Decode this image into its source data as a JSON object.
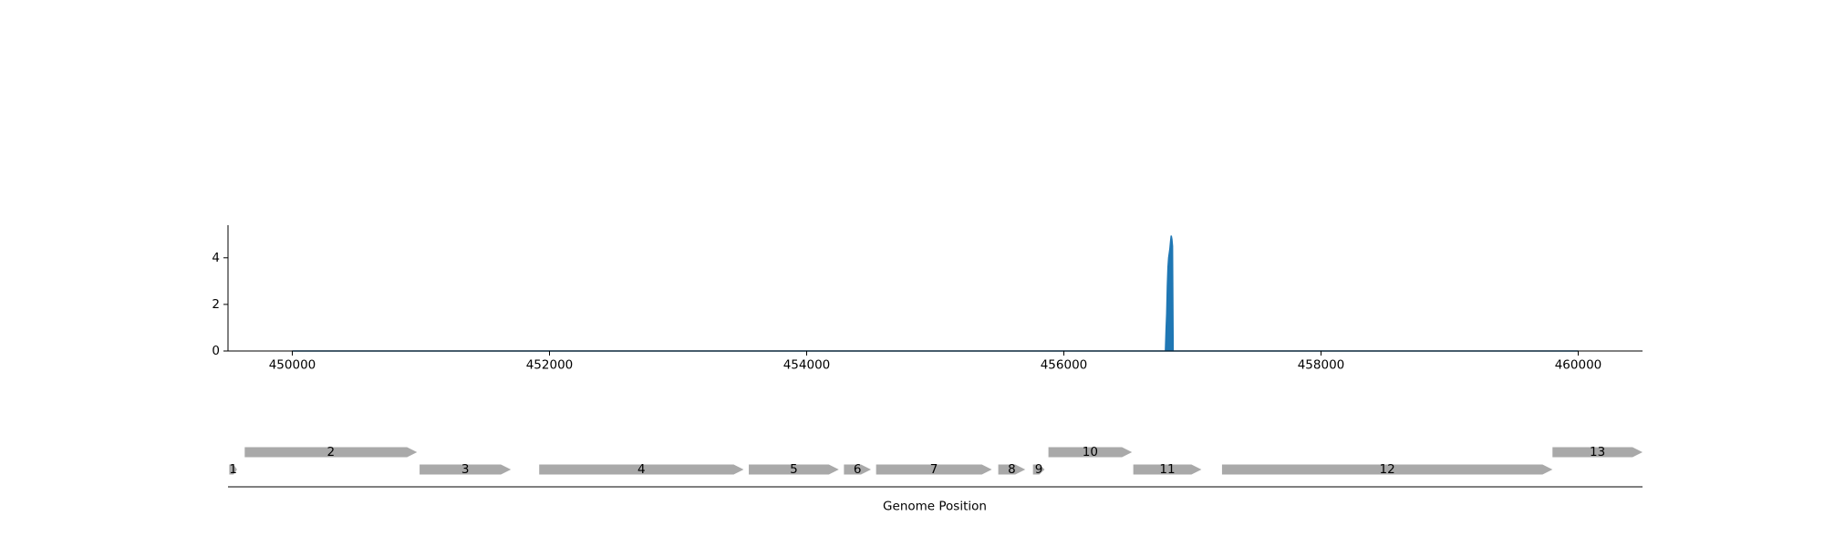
{
  "chart_data": [
    {
      "type": "area",
      "title": "",
      "xlabel": "",
      "ylabel": "",
      "xlim": [
        449500,
        460500
      ],
      "ylim": [
        0,
        5.4
      ],
      "x_ticks": [
        {
          "value": 450000,
          "label": "450000"
        },
        {
          "value": 452000,
          "label": "452000"
        },
        {
          "value": 454000,
          "label": "454000"
        },
        {
          "value": 456000,
          "label": "456000"
        },
        {
          "value": 458000,
          "label": "458000"
        },
        {
          "value": 460000,
          "label": "460000"
        }
      ],
      "y_ticks": [
        {
          "value": 0,
          "label": "0"
        },
        {
          "value": 2,
          "label": "2"
        },
        {
          "value": 4,
          "label": "4"
        }
      ],
      "grid": false,
      "color": "#1f77b4",
      "series": [
        {
          "x": [
            450000,
            456790,
            456795,
            456800,
            456805,
            456810,
            456815,
            456820,
            456825,
            456830,
            456835,
            456840,
            456845,
            456850,
            460000
          ],
          "y": [
            0,
            0,
            0.9,
            1.6,
            2.8,
            3.6,
            4.0,
            4.2,
            4.4,
            4.7,
            4.95,
            4.8,
            4.5,
            0,
            0
          ]
        }
      ]
    },
    {
      "type": "gene_map",
      "title": "",
      "xlabel": "Genome Position",
      "xlim": [
        449500,
        460500
      ],
      "gene_color": "#a9a9a9",
      "genes": [
        {
          "label": "1",
          "start": 449510,
          "end": 449570,
          "strand": "+",
          "lane": 0
        },
        {
          "label": "2",
          "start": 449630,
          "end": 450970,
          "strand": "+",
          "lane": 1
        },
        {
          "label": "3",
          "start": 450990,
          "end": 451700,
          "strand": "+",
          "lane": 0
        },
        {
          "label": "4",
          "start": 451920,
          "end": 453510,
          "strand": "+",
          "lane": 0
        },
        {
          "label": "5",
          "start": 453550,
          "end": 454250,
          "strand": "+",
          "lane": 0
        },
        {
          "label": "6",
          "start": 454290,
          "end": 454500,
          "strand": "+",
          "lane": 0
        },
        {
          "label": "7",
          "start": 454540,
          "end": 455440,
          "strand": "+",
          "lane": 0
        },
        {
          "label": "8",
          "start": 455490,
          "end": 455700,
          "strand": "+",
          "lane": 0
        },
        {
          "label": "9",
          "start": 455760,
          "end": 455850,
          "strand": "+",
          "lane": 0
        },
        {
          "label": "10",
          "start": 455880,
          "end": 456530,
          "strand": "+",
          "lane": 1
        },
        {
          "label": "11",
          "start": 456540,
          "end": 457070,
          "strand": "+",
          "lane": 0
        },
        {
          "label": "12",
          "start": 457230,
          "end": 459800,
          "strand": "+",
          "lane": 0
        },
        {
          "label": "13",
          "start": 459800,
          "end": 460500,
          "strand": "+",
          "lane": 1
        }
      ]
    }
  ]
}
